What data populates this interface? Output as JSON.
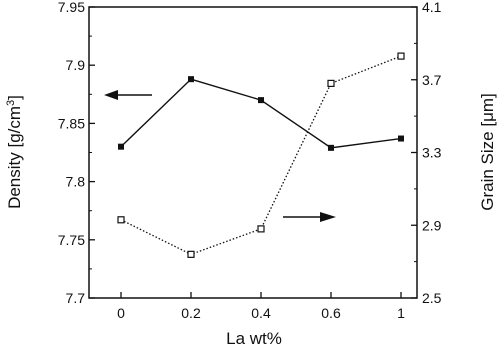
{
  "chart_data": {
    "type": "line",
    "title": "",
    "xlabel": "La wt%",
    "ylabel_left": "Density [g/cm3]",
    "ylabel_left_main": "Density",
    "ylabel_left_unit": "[g/cm",
    "ylabel_left_exp": "3",
    "ylabel_left_close": "]",
    "ylabel_right": "Grain Size [μm]",
    "ylabel_right_main": "Grain Size",
    "ylabel_right_unit": "[μm]",
    "categories": [
      "0",
      "0.2",
      "0.4",
      "0.6",
      "1"
    ],
    "x_ticks": [
      "0",
      "0.2",
      "0.4",
      "0.6",
      "1"
    ],
    "ylim_left": [
      7.7,
      7.95
    ],
    "ylim_right": [
      2.5,
      4.1
    ],
    "y_left_ticks": [
      "7.7",
      "7.75",
      "7.8",
      "7.85",
      "7.9",
      "7.95"
    ],
    "y_right_ticks": [
      "2.5",
      "2.9",
      "3.3",
      "3.7",
      "4.1"
    ],
    "grid": false,
    "series": [
      {
        "axis": "left",
        "style": "solid",
        "values": [
          7.83,
          7.888,
          7.87,
          7.829,
          7.837
        ]
      },
      {
        "axis": "right",
        "style": "dotted",
        "values": [
          2.93,
          2.74,
          2.88,
          3.68,
          3.83
        ]
      }
    ],
    "annotations": [
      {
        "type": "arrow",
        "direction": "left",
        "points_to": "left-axis"
      },
      {
        "type": "arrow",
        "direction": "right",
        "points_to": "right-axis"
      }
    ]
  }
}
